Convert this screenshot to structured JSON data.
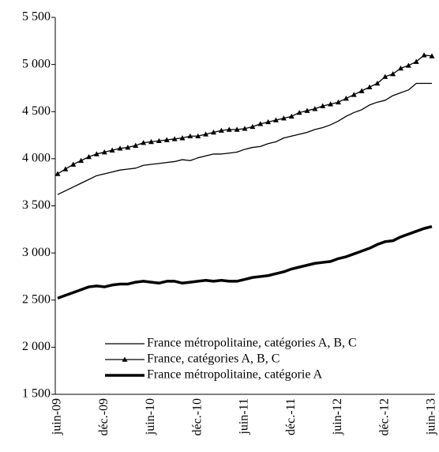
{
  "chart_data": {
    "type": "line",
    "categories": [
      "juin-09",
      null,
      null,
      null,
      null,
      null,
      "déc.-09",
      null,
      null,
      null,
      null,
      null,
      "juin-10",
      null,
      null,
      null,
      null,
      null,
      "déc.-10",
      null,
      null,
      null,
      null,
      null,
      "juin-11",
      null,
      null,
      null,
      null,
      null,
      "déc.-11",
      null,
      null,
      null,
      null,
      null,
      "juin-12",
      null,
      null,
      null,
      null,
      null,
      "déc.-12",
      null,
      null,
      null,
      null,
      null,
      "juin-13"
    ],
    "series": [
      {
        "name": "France métropolitaine, catégories A, B, C",
        "color": "#000000",
        "width": 1.3,
        "marker": "none",
        "values": [
          3620,
          3660,
          3700,
          3740,
          3780,
          3820,
          3840,
          3860,
          3880,
          3890,
          3900,
          3930,
          3940,
          3950,
          3960,
          3970,
          3990,
          3980,
          4010,
          4030,
          4050,
          4050,
          4060,
          4070,
          4100,
          4120,
          4130,
          4160,
          4180,
          4220,
          4240,
          4260,
          4280,
          4310,
          4330,
          4360,
          4400,
          4450,
          4490,
          4520,
          4570,
          4600,
          4620,
          4670,
          4700,
          4730,
          4800,
          4800,
          4800
        ]
      },
      {
        "name": "France, catégories A, B, C",
        "color": "#000000",
        "width": 1.3,
        "marker": "triangle",
        "values": [
          3840,
          3890,
          3940,
          3980,
          4020,
          4050,
          4070,
          4090,
          4110,
          4120,
          4140,
          4170,
          4180,
          4190,
          4200,
          4210,
          4220,
          4240,
          4240,
          4260,
          4280,
          4300,
          4310,
          4310,
          4320,
          4340,
          4370,
          4390,
          4410,
          4430,
          4450,
          4490,
          4510,
          4530,
          4560,
          4580,
          4600,
          4640,
          4680,
          4720,
          4760,
          4800,
          4870,
          4900,
          4960,
          4990,
          5030,
          5100,
          5090
        ]
      },
      {
        "name": "France métropolitaine, catégorie A",
        "color": "#000000",
        "width": 3.5,
        "marker": "none",
        "values": [
          2520,
          2550,
          2580,
          2610,
          2640,
          2650,
          2640,
          2660,
          2670,
          2670,
          2690,
          2700,
          2690,
          2680,
          2700,
          2700,
          2680,
          2690,
          2700,
          2710,
          2700,
          2710,
          2700,
          2700,
          2720,
          2740,
          2750,
          2760,
          2780,
          2800,
          2830,
          2850,
          2870,
          2890,
          2900,
          2910,
          2940,
          2960,
          2990,
          3020,
          3050,
          3090,
          3120,
          3130,
          3170,
          3200,
          3230,
          3260,
          3280
        ]
      }
    ],
    "ylim": [
      1500,
      5500
    ],
    "yticks": [
      {
        "value": 1500,
        "label": "1 500"
      },
      {
        "value": 2000,
        "label": "2 000"
      },
      {
        "value": 2500,
        "label": "2 500"
      },
      {
        "value": 3000,
        "label": "3 000"
      },
      {
        "value": 3500,
        "label": "3 500"
      },
      {
        "value": 4000,
        "label": "4 000"
      },
      {
        "value": 4500,
        "label": "4 500"
      },
      {
        "value": 5000,
        "label": "5 000"
      },
      {
        "value": 5500,
        "label": "5 500"
      }
    ],
    "grid": false,
    "legend": "lower right"
  }
}
